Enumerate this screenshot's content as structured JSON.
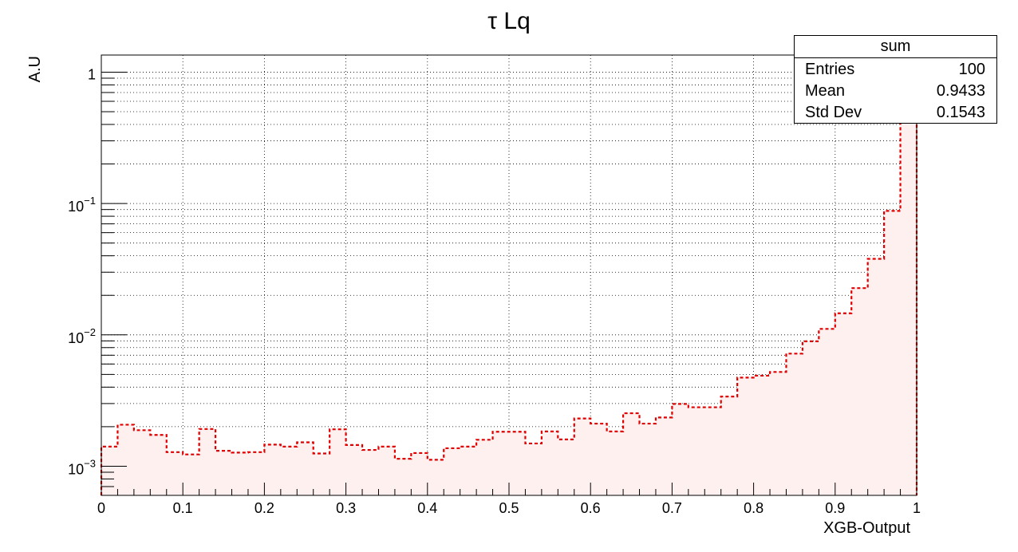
{
  "chart_data": {
    "type": "histogram",
    "title": "τ Lq",
    "xlabel": "XGB-Output",
    "ylabel": "A.U",
    "xlim": [
      0,
      1
    ],
    "ylim": [
      0.0006,
      1.35
    ],
    "yscale": "log",
    "grid": true,
    "line_color": "#e00000",
    "fill_color": "#fff0f0",
    "x_ticks": [
      "0",
      "0.1",
      "0.2",
      "0.3",
      "0.4",
      "0.5",
      "0.6",
      "0.7",
      "0.8",
      "0.9",
      "1"
    ],
    "y_ticks": [
      {
        "value": 0.001,
        "base": "10",
        "exp": "−3"
      },
      {
        "value": 0.01,
        "base": "10",
        "exp": "−2"
      },
      {
        "value": 0.1,
        "base": "10",
        "exp": "−1"
      },
      {
        "value": 1,
        "base": "1",
        "exp": ""
      }
    ],
    "bin_edges": [
      0,
      0.02,
      0.04,
      0.06,
      0.08,
      0.1,
      0.12,
      0.14,
      0.16,
      0.18,
      0.2,
      0.22,
      0.24,
      0.26,
      0.28,
      0.3,
      0.32,
      0.34,
      0.36,
      0.38,
      0.4,
      0.42,
      0.44,
      0.46,
      0.48,
      0.5,
      0.52,
      0.54,
      0.56,
      0.58,
      0.6,
      0.62,
      0.64,
      0.66,
      0.68,
      0.7,
      0.72,
      0.74,
      0.76,
      0.78,
      0.8,
      0.82,
      0.84,
      0.86,
      0.88,
      0.9,
      0.92,
      0.94,
      0.96,
      0.98,
      1.0
    ],
    "values": [
      0.00141,
      0.00207,
      0.00188,
      0.00173,
      0.00128,
      0.00123,
      0.00192,
      0.00131,
      0.00127,
      0.00128,
      0.00146,
      0.00141,
      0.00152,
      0.00125,
      0.00191,
      0.00145,
      0.00133,
      0.00141,
      0.00114,
      0.00126,
      0.00112,
      0.00137,
      0.00141,
      0.00159,
      0.00183,
      0.00183,
      0.00149,
      0.00184,
      0.0016,
      0.00231,
      0.00211,
      0.00184,
      0.00253,
      0.00211,
      0.00235,
      0.00298,
      0.00281,
      0.00281,
      0.00339,
      0.00473,
      0.00489,
      0.00522,
      0.0072,
      0.00893,
      0.0111,
      0.0146,
      0.0227,
      0.0379,
      0.0879,
      0.42
    ]
  },
  "stats": {
    "title": "sum",
    "rows": [
      {
        "label": "Entries",
        "value": "100"
      },
      {
        "label": "Mean",
        "value": "0.9433"
      },
      {
        "label": "Std Dev",
        "value": "0.1543"
      }
    ]
  }
}
